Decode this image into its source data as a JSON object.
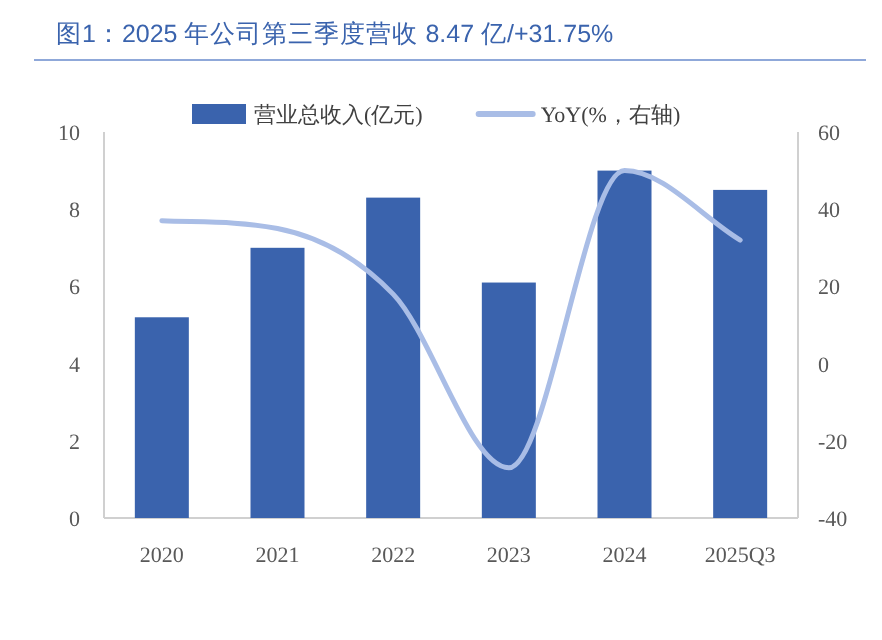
{
  "chart_data": {
    "type": "bar",
    "title": "图1：2025 年公司第三季度营收 8.47 亿/+31.75%",
    "categories": [
      "2020",
      "2021",
      "2022",
      "2023",
      "2024",
      "2025Q3"
    ],
    "series": [
      {
        "name": "营业总收入(亿元)",
        "color": "#3a63ad",
        "values": [
          5.2,
          7.0,
          8.3,
          6.1,
          9.0,
          8.5
        ]
      },
      {
        "name": "YoY(%，右轴)",
        "type": "line",
        "axis": "y2",
        "color": "#a9bde6",
        "values": [
          37,
          35,
          18,
          -27,
          50,
          32
        ]
      }
    ],
    "ylim": [
      0,
      10
    ],
    "yticks": [
      0,
      2,
      4,
      6,
      8,
      10
    ],
    "y2lim": [
      -40,
      60
    ],
    "y2ticks": [
      -40,
      -20,
      0,
      20,
      40,
      60
    ],
    "legend": "top",
    "grid": false
  }
}
